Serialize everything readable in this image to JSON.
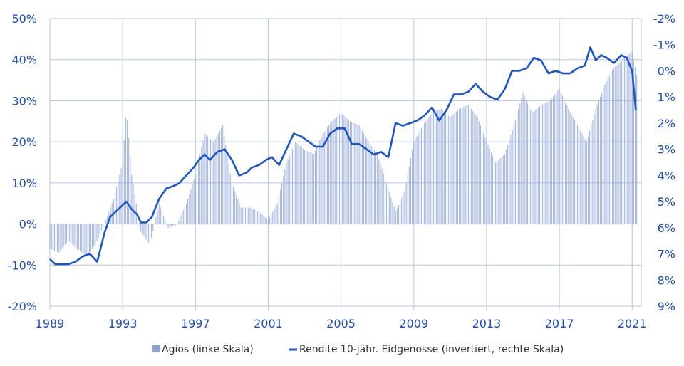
{
  "chart_data": {
    "type": "bar+line",
    "colors": {
      "bars": "#8ea3d4",
      "line": "#1a56c9",
      "axis_text": "#1e4db7",
      "grid": "#b8c4e6"
    },
    "legend": {
      "placement": "bottom-center",
      "entries": [
        "Agios (linke Skala)",
        "Rendite 10-jähr. Eidgenosse (invertiert, rechte Skala)"
      ]
    },
    "x_axis": {
      "range": [
        1989,
        2021.5
      ],
      "ticks": [
        1989,
        1993,
        1997,
        2001,
        2005,
        2009,
        2013,
        2017,
        2021
      ],
      "tick_labels": [
        "1989",
        "1993",
        "1997",
        "2001",
        "2005",
        "2009",
        "2013",
        "2017",
        "2021"
      ]
    },
    "y_left": {
      "range": [
        -20,
        50
      ],
      "ticks": [
        -20,
        -10,
        0,
        10,
        20,
        30,
        40,
        50
      ],
      "tick_labels": [
        "-20%",
        "-10%",
        "0%",
        "10%",
        "20%",
        "30%",
        "40%",
        "50%"
      ]
    },
    "y_right": {
      "inverted": true,
      "range": [
        -2,
        9
      ],
      "ticks": [
        -2,
        -1,
        0,
        1,
        2,
        3,
        4,
        5,
        6,
        7,
        8,
        9
      ],
      "tick_labels": [
        "-2%",
        "-1%",
        "0%",
        "1%",
        "2%",
        "3%",
        "4%",
        "5%",
        "6%",
        "7%",
        "8%",
        "9%"
      ]
    },
    "series": [
      {
        "name": "Agios (linke Skala)",
        "kind": "bar",
        "axis": "left",
        "x": [
          1989.0,
          1989.5,
          1990.0,
          1990.5,
          1991.0,
          1991.5,
          1992.0,
          1992.5,
          1993.0,
          1993.2,
          1993.5,
          1994.0,
          1994.5,
          1995.0,
          1995.5,
          1996.0,
          1996.5,
          1997.0,
          1997.5,
          1998.0,
          1998.5,
          1999.0,
          1999.5,
          2000.0,
          2000.5,
          2001.0,
          2001.5,
          2002.0,
          2002.5,
          2003.0,
          2003.5,
          2004.0,
          2004.5,
          2005.0,
          2005.5,
          2006.0,
          2006.5,
          2007.0,
          2007.5,
          2008.0,
          2008.5,
          2009.0,
          2009.5,
          2010.0,
          2010.5,
          2011.0,
          2011.5,
          2012.0,
          2012.5,
          2013.0,
          2013.5,
          2014.0,
          2014.5,
          2015.0,
          2015.5,
          2016.0,
          2016.5,
          2017.0,
          2017.5,
          2018.0,
          2018.5,
          2019.0,
          2019.5,
          2020.0,
          2020.5,
          2021.0,
          2021.3
        ],
        "values": [
          -6,
          -7,
          -4,
          -6,
          -8,
          -5,
          0,
          6,
          15,
          28,
          12,
          -2,
          -5,
          5,
          -1,
          0,
          5,
          12,
          22,
          20,
          24,
          10,
          4,
          4,
          3,
          1,
          5,
          15,
          20,
          18,
          17,
          22,
          25,
          27,
          25,
          24,
          20,
          17,
          10,
          3,
          8,
          20,
          24,
          27,
          28,
          26,
          28,
          29,
          26,
          20,
          15,
          17,
          24,
          32,
          27,
          29,
          30,
          33,
          28,
          24,
          20,
          28,
          34,
          38,
          40,
          42,
          35
        ]
      },
      {
        "name": "Rendite 10-jähr. Eidgenosse (invertiert, rechte Skala)",
        "kind": "line",
        "axis": "right",
        "x": [
          1989.0,
          1989.3,
          1989.7,
          1990.0,
          1990.4,
          1990.8,
          1991.2,
          1991.6,
          1992.0,
          1992.3,
          1992.6,
          1992.9,
          1993.2,
          1993.5,
          1993.8,
          1994.0,
          1994.3,
          1994.6,
          1995.0,
          1995.4,
          1995.8,
          1996.1,
          1996.5,
          1996.9,
          1997.2,
          1997.5,
          1997.8,
          1998.2,
          1998.6,
          1999.0,
          1999.4,
          1999.8,
          2000.1,
          2000.5,
          2000.9,
          2001.2,
          2001.6,
          2002.0,
          2002.4,
          2002.8,
          2003.2,
          2003.6,
          2004.0,
          2004.4,
          2004.8,
          2005.2,
          2005.6,
          2006.0,
          2006.4,
          2006.8,
          2007.2,
          2007.6,
          2008.0,
          2008.4,
          2008.8,
          2009.2,
          2009.6,
          2010.0,
          2010.4,
          2010.8,
          2011.2,
          2011.6,
          2012.0,
          2012.4,
          2012.8,
          2013.2,
          2013.6,
          2014.0,
          2014.4,
          2014.8,
          2015.2,
          2015.6,
          2016.0,
          2016.4,
          2016.8,
          2017.2,
          2017.6,
          2018.0,
          2018.4,
          2018.7,
          2019.0,
          2019.3,
          2019.6,
          2020.0,
          2020.4,
          2020.7,
          2021.0,
          2021.2
        ],
        "values": [
          7.2,
          7.4,
          7.4,
          7.4,
          7.3,
          7.1,
          7.0,
          7.3,
          6.2,
          5.6,
          5.4,
          5.2,
          5.0,
          5.3,
          5.5,
          5.8,
          5.8,
          5.6,
          4.9,
          4.5,
          4.4,
          4.3,
          4.0,
          3.7,
          3.4,
          3.2,
          3.4,
          3.1,
          3.0,
          3.4,
          4.0,
          3.9,
          3.7,
          3.6,
          3.4,
          3.3,
          3.6,
          3.0,
          2.4,
          2.5,
          2.7,
          2.9,
          2.9,
          2.4,
          2.2,
          2.2,
          2.8,
          2.8,
          3.0,
          3.2,
          3.1,
          3.3,
          2.0,
          2.1,
          2.0,
          1.9,
          1.7,
          1.4,
          1.9,
          1.5,
          0.9,
          0.9,
          0.8,
          0.5,
          0.8,
          1.0,
          1.1,
          0.7,
          0.0,
          0.0,
          -0.1,
          -0.5,
          -0.4,
          0.1,
          0.0,
          0.1,
          0.1,
          -0.1,
          -0.2,
          -0.9,
          -0.4,
          -0.6,
          -0.5,
          -0.3,
          -0.6,
          -0.5,
          0.0,
          1.5
        ]
      }
    ]
  }
}
